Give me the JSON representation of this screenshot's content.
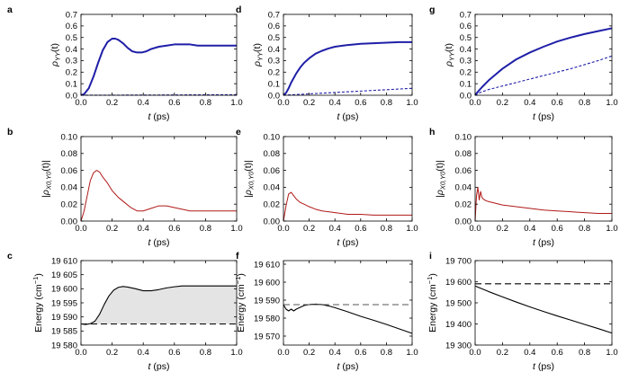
{
  "colors": {
    "blue": "#1f1fa8",
    "red": "#b01818",
    "black": "#000000",
    "shade": "#e4e4e4",
    "dash": "#555555"
  },
  "chart_data": [
    {
      "label": "a",
      "type": "line",
      "xlabel": "t (ps)",
      "ylabel": "ρ_YY(t)",
      "xlim": [
        0,
        1
      ],
      "ylim": [
        0,
        0.7
      ],
      "xticks": [
        "0.0",
        "0.2",
        "0.4",
        "0.6",
        "0.8",
        "1.0"
      ],
      "yticks": [
        "0.0",
        "0.1",
        "0.2",
        "0.3",
        "0.4",
        "0.5",
        "0.6",
        "0.7"
      ],
      "series": [
        {
          "style": "solid",
          "color": "blue",
          "x": [
            0,
            0.02,
            0.05,
            0.08,
            0.11,
            0.14,
            0.17,
            0.2,
            0.22,
            0.24,
            0.27,
            0.3,
            0.33,
            0.36,
            0.39,
            0.42,
            0.45,
            0.5,
            0.55,
            0.6,
            0.65,
            0.7,
            0.75,
            0.8,
            0.9,
            1.0
          ],
          "y": [
            0,
            0.01,
            0.06,
            0.16,
            0.28,
            0.39,
            0.46,
            0.49,
            0.49,
            0.48,
            0.45,
            0.41,
            0.38,
            0.37,
            0.37,
            0.38,
            0.4,
            0.42,
            0.43,
            0.44,
            0.44,
            0.44,
            0.43,
            0.43,
            0.43,
            0.43
          ]
        },
        {
          "style": "dashed",
          "color": "blue",
          "x": [
            0,
            0.5,
            1.0
          ],
          "y": [
            0,
            0.002,
            0.005
          ]
        }
      ]
    },
    {
      "label": "d",
      "type": "line",
      "xlabel": "t (ps)",
      "ylabel": "ρ_YY(t)",
      "xlim": [
        0,
        1
      ],
      "ylim": [
        0,
        0.7
      ],
      "xticks": [
        "0.0",
        "0.2",
        "0.4",
        "0.6",
        "0.8",
        "1.0"
      ],
      "yticks": [
        "0.0",
        "0.1",
        "0.2",
        "0.3",
        "0.4",
        "0.5",
        "0.6",
        "0.7"
      ],
      "series": [
        {
          "style": "solid",
          "color": "blue",
          "x": [
            0,
            0.02,
            0.04,
            0.06,
            0.08,
            0.1,
            0.13,
            0.16,
            0.2,
            0.25,
            0.3,
            0.35,
            0.4,
            0.5,
            0.6,
            0.7,
            0.8,
            0.9,
            1.0
          ],
          "y": [
            0,
            0.02,
            0.06,
            0.11,
            0.15,
            0.19,
            0.24,
            0.28,
            0.32,
            0.36,
            0.385,
            0.405,
            0.42,
            0.435,
            0.445,
            0.45,
            0.455,
            0.46,
            0.46
          ]
        },
        {
          "style": "dashed",
          "color": "blue",
          "x": [
            0,
            0.2,
            0.4,
            0.6,
            0.8,
            1.0
          ],
          "y": [
            0,
            0.012,
            0.024,
            0.036,
            0.048,
            0.06
          ]
        }
      ]
    },
    {
      "label": "g",
      "type": "line",
      "xlabel": "t (ps)",
      "ylabel": "ρ_YY(t)",
      "xlim": [
        0,
        1
      ],
      "ylim": [
        0,
        0.7
      ],
      "xticks": [
        "0.0",
        "0.2",
        "0.4",
        "0.6",
        "0.8",
        "1.0"
      ],
      "yticks": [
        "0.0",
        "0.1",
        "0.2",
        "0.3",
        "0.4",
        "0.5",
        "0.6",
        "0.7"
      ],
      "series": [
        {
          "style": "solid",
          "color": "blue",
          "x": [
            0,
            0.02,
            0.05,
            0.1,
            0.15,
            0.2,
            0.3,
            0.4,
            0.5,
            0.6,
            0.7,
            0.8,
            0.9,
            1.0
          ],
          "y": [
            0,
            0.03,
            0.07,
            0.13,
            0.18,
            0.23,
            0.31,
            0.37,
            0.42,
            0.465,
            0.5,
            0.53,
            0.555,
            0.58
          ]
        },
        {
          "style": "dashed",
          "color": "blue",
          "x": [
            0,
            0.02,
            0.05,
            0.1,
            0.2,
            0.3,
            0.4,
            0.5,
            0.6,
            0.7,
            0.8,
            0.9,
            1.0
          ],
          "y": [
            0,
            0.015,
            0.03,
            0.05,
            0.08,
            0.11,
            0.14,
            0.17,
            0.2,
            0.23,
            0.265,
            0.3,
            0.34
          ]
        }
      ]
    },
    {
      "label": "b",
      "type": "line",
      "xlabel": "t (ps)",
      "ylabel": "|ρ_X0,Y0(t)|",
      "xlim": [
        0,
        1
      ],
      "ylim": [
        0,
        0.1
      ],
      "xticks": [
        "0.0",
        "0.2",
        "0.4",
        "0.6",
        "0.8",
        "1.0"
      ],
      "yticks": [
        "0.00",
        "0.02",
        "0.04",
        "0.06",
        "0.08",
        "0.10"
      ],
      "series": [
        {
          "style": "solid",
          "color": "red",
          "x": [
            0,
            0.02,
            0.04,
            0.06,
            0.08,
            0.1,
            0.12,
            0.14,
            0.17,
            0.2,
            0.24,
            0.28,
            0.32,
            0.36,
            0.4,
            0.45,
            0.5,
            0.55,
            0.6,
            0.65,
            0.7,
            0.8,
            0.9,
            1.0
          ],
          "y": [
            0,
            0.012,
            0.03,
            0.048,
            0.057,
            0.06,
            0.058,
            0.052,
            0.045,
            0.036,
            0.028,
            0.022,
            0.016,
            0.012,
            0.012,
            0.015,
            0.018,
            0.018,
            0.016,
            0.014,
            0.012,
            0.012,
            0.012,
            0.012
          ]
        }
      ]
    },
    {
      "label": "e",
      "type": "line",
      "xlabel": "t (ps)",
      "ylabel": "|ρ_X0,Y0(t)|",
      "xlim": [
        0,
        1
      ],
      "ylim": [
        0,
        0.1
      ],
      "xticks": [
        "0.0",
        "0.2",
        "0.4",
        "0.6",
        "0.8",
        "1.0"
      ],
      "yticks": [
        "0.00",
        "0.02",
        "0.04",
        "0.06",
        "0.08",
        "0.10"
      ],
      "series": [
        {
          "style": "solid",
          "color": "red",
          "x": [
            0,
            0.02,
            0.04,
            0.06,
            0.08,
            0.1,
            0.13,
            0.16,
            0.2,
            0.25,
            0.3,
            0.35,
            0.4,
            0.5,
            0.6,
            0.7,
            0.8,
            0.9,
            1.0
          ],
          "y": [
            0,
            0.018,
            0.032,
            0.034,
            0.03,
            0.026,
            0.022,
            0.02,
            0.017,
            0.014,
            0.012,
            0.011,
            0.01,
            0.008,
            0.008,
            0.007,
            0.007,
            0.007,
            0.007
          ]
        }
      ]
    },
    {
      "label": "h",
      "type": "line",
      "xlabel": "t (ps)",
      "ylabel": "|ρ_X0,Y0(t)|",
      "xlim": [
        0,
        1
      ],
      "ylim": [
        0,
        0.1
      ],
      "xticks": [
        "0.0",
        "0.2",
        "0.4",
        "0.6",
        "0.8",
        "1.0"
      ],
      "yticks": [
        "0.00",
        "0.02",
        "0.04",
        "0.06",
        "0.08",
        "0.10"
      ],
      "series": [
        {
          "style": "solid",
          "color": "red",
          "x": [
            0,
            0.01,
            0.02,
            0.03,
            0.04,
            0.05,
            0.06,
            0.08,
            0.1,
            0.15,
            0.2,
            0.3,
            0.4,
            0.5,
            0.6,
            0.7,
            0.8,
            0.9,
            1.0
          ],
          "y": [
            0,
            0.03,
            0.04,
            0.025,
            0.035,
            0.028,
            0.026,
            0.024,
            0.023,
            0.021,
            0.019,
            0.017,
            0.015,
            0.013,
            0.012,
            0.011,
            0.01,
            0.009,
            0.009
          ]
        }
      ]
    },
    {
      "label": "c",
      "type": "area",
      "xlabel": "t (ps)",
      "ylabel": "Energy (cm⁻¹)",
      "xlim": [
        0,
        1
      ],
      "ylim": [
        19580,
        19610
      ],
      "xticks": [
        "0.0",
        "0.2",
        "0.4",
        "0.6",
        "0.8",
        "1.0"
      ],
      "yticks": [
        "19 580",
        "19 585",
        "19 590",
        "19 595",
        "19 600",
        "19 605",
        "19 610"
      ],
      "shade_between": true,
      "series": [
        {
          "style": "solid",
          "color": "black",
          "x": [
            0,
            0.03,
            0.06,
            0.09,
            0.12,
            0.15,
            0.18,
            0.21,
            0.24,
            0.27,
            0.3,
            0.35,
            0.4,
            0.45,
            0.5,
            0.55,
            0.6,
            0.65,
            0.7,
            0.8,
            0.9,
            1.0
          ],
          "y": [
            19587.5,
            19587.3,
            19587.6,
            19588.5,
            19591,
            19594.5,
            19597.5,
            19599.5,
            19600.5,
            19600.8,
            19600.6,
            19600,
            19599.3,
            19599.3,
            19599.7,
            19600.3,
            19600.7,
            19601,
            19601,
            19601,
            19601,
            19601
          ]
        },
        {
          "style": "dashed",
          "color": "black",
          "x": [
            0,
            1
          ],
          "y": [
            19587.5,
            19587.5
          ]
        }
      ]
    },
    {
      "label": "f",
      "type": "line",
      "xlabel": "t (ps)",
      "ylabel": "Energy (cm⁻¹)",
      "xlim": [
        0,
        1
      ],
      "ylim": [
        19565,
        19612
      ],
      "xticks": [
        "0.0",
        "0.2",
        "0.4",
        "0.6",
        "0.8",
        "1.0"
      ],
      "yticks": [
        "19 570",
        "19 580",
        "19 590",
        "19 600",
        "19 610"
      ],
      "series": [
        {
          "style": "solid",
          "color": "black",
          "x": [
            0,
            0.02,
            0.04,
            0.06,
            0.08,
            0.1,
            0.13,
            0.16,
            0.2,
            0.25,
            0.3,
            0.35,
            0.4,
            0.5,
            0.6,
            0.7,
            0.8,
            0.9,
            1.0
          ],
          "y": [
            19587.5,
            19585,
            19584,
            19585,
            19584,
            19585,
            19586,
            19587,
            19587.5,
            19587.8,
            19587.5,
            19586.8,
            19585.8,
            19583.5,
            19581,
            19578.8,
            19576.5,
            19574,
            19571.5
          ]
        },
        {
          "style": "dashed",
          "color": "dash",
          "x": [
            0,
            1
          ],
          "y": [
            19587.5,
            19587.5
          ]
        }
      ]
    },
    {
      "label": "i",
      "type": "line",
      "xlabel": "t (ps)",
      "ylabel": "Energy (cm⁻¹)",
      "xlim": [
        0,
        1
      ],
      "ylim": [
        19300,
        19700
      ],
      "xticks": [
        "0.0",
        "0.2",
        "0.4",
        "0.6",
        "0.8",
        "1.0"
      ],
      "yticks": [
        "19 300",
        "19 400",
        "19 500",
        "19 600",
        "19 700"
      ],
      "series": [
        {
          "style": "solid",
          "color": "black",
          "x": [
            0,
            0.1,
            0.2,
            0.3,
            0.4,
            0.5,
            0.6,
            0.7,
            0.8,
            0.9,
            1.0
          ],
          "y": [
            19580,
            19553,
            19528,
            19504,
            19481,
            19459,
            19438,
            19418,
            19398,
            19378,
            19357
          ]
        },
        {
          "style": "dashed",
          "color": "black",
          "x": [
            0,
            1
          ],
          "y": [
            19590,
            19590
          ]
        }
      ]
    }
  ]
}
